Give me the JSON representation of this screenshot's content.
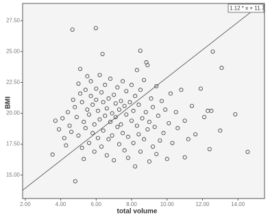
{
  "chart_data": {
    "type": "scatter",
    "x_label": "total volume",
    "y_label": "BMI",
    "xlim": [
      1.85,
      15.5
    ],
    "ylim": [
      13.1,
      28.9
    ],
    "xticks": [
      {
        "value": 2,
        "label": "2.00"
      },
      {
        "value": 4,
        "label": "4.00"
      },
      {
        "value": 6,
        "label": "6.00"
      },
      {
        "value": 8,
        "label": "8.00"
      },
      {
        "value": 10,
        "label": "10.00"
      },
      {
        "value": 12,
        "label": "12.00"
      },
      {
        "value": 14,
        "label": "14.00"
      }
    ],
    "yticks": [
      {
        "value": 15,
        "label": "15.00"
      },
      {
        "value": 17.5,
        "label": "17.50"
      },
      {
        "value": 20,
        "label": "20.00"
      },
      {
        "value": 22.5,
        "label": "22.50"
      },
      {
        "value": 25,
        "label": "25.00"
      },
      {
        "value": 27.5,
        "label": "27.50"
      }
    ],
    "fit": {
      "slope": 1.12,
      "intercept": 11.7,
      "label": "1.12 * x + 11.7"
    },
    "series": [
      {
        "color": "#333333",
        "x": [
          3.54,
          4.66,
          4.82,
          5.98,
          6.36,
          8.49,
          12.58,
          13.08,
          8.83,
          14.55,
          13.85,
          11.0,
          3.7,
          3.9,
          4.1,
          4.2,
          4.3,
          4.4,
          4.5,
          4.6,
          4.7,
          4.8,
          4.9,
          5.0,
          5.0,
          5.1,
          5.1,
          5.2,
          5.2,
          5.3,
          5.3,
          5.4,
          5.4,
          5.5,
          5.5,
          5.6,
          5.6,
          5.7,
          5.7,
          5.8,
          5.8,
          5.9,
          5.9,
          6.0,
          6.0,
          6.1,
          6.1,
          6.2,
          6.2,
          6.3,
          6.3,
          6.4,
          6.4,
          6.5,
          6.5,
          6.6,
          6.6,
          6.7,
          6.7,
          6.8,
          6.8,
          6.9,
          6.9,
          7.0,
          7.0,
          7.1,
          7.1,
          7.2,
          7.2,
          7.3,
          7.3,
          7.4,
          7.4,
          7.5,
          7.5,
          7.6,
          7.6,
          7.7,
          7.7,
          7.8,
          7.8,
          7.9,
          8.0,
          8.0,
          8.1,
          8.1,
          8.2,
          8.2,
          8.3,
          8.3,
          8.4,
          8.4,
          8.5,
          8.5,
          8.6,
          8.7,
          8.7,
          8.8,
          8.9,
          8.9,
          9.0,
          9.0,
          9.1,
          9.2,
          9.2,
          9.3,
          9.4,
          9.4,
          9.5,
          9.6,
          9.7,
          9.8,
          9.9,
          10.0,
          10.1,
          10.2,
          10.3,
          10.5,
          10.6,
          10.8,
          11.0,
          11.2,
          11.4,
          11.6,
          11.9,
          12.1,
          12.3,
          12.5,
          12.4,
          13.0
        ],
        "values": [
          16.66,
          26.78,
          14.5,
          26.9,
          24.8,
          25.07,
          25.0,
          23.68,
          24.13,
          16.88,
          19.92,
          16.44,
          19.4,
          18.7,
          19.6,
          18.0,
          17.4,
          20.1,
          19.0,
          18.5,
          21.1,
          20.5,
          19.7,
          18.2,
          22.4,
          21.6,
          23.6,
          20.9,
          17.2,
          19.3,
          16.3,
          21.9,
          18.8,
          20.3,
          23.0,
          17.6,
          19.9,
          21.4,
          22.6,
          18.4,
          20.7,
          16.9,
          19.1,
          21.1,
          22.0,
          18.0,
          20.2,
          19.5,
          23.1,
          17.3,
          21.7,
          20.9,
          18.6,
          22.3,
          19.8,
          16.6,
          20.4,
          21.2,
          17.9,
          19.3,
          22.8,
          20.0,
          18.2,
          21.5,
          16.2,
          19.7,
          20.8,
          18.9,
          22.1,
          17.5,
          20.3,
          21.0,
          19.1,
          18.4,
          22.6,
          20.6,
          17.0,
          19.9,
          21.8,
          18.1,
          16.4,
          20.9,
          19.4,
          22.3,
          17.6,
          20.2,
          21.4,
          15.7,
          19.0,
          23.5,
          18.3,
          20.7,
          16.9,
          21.9,
          19.6,
          17.9,
          22.7,
          20.1,
          18.7,
          23.9,
          19.3,
          16.1,
          21.2,
          17.3,
          20.5,
          18.9,
          22.2,
          16.7,
          19.8,
          17.8,
          21.0,
          18.4,
          20.3,
          16.3,
          19.2,
          21.6,
          17.6,
          20.1,
          18.8,
          21.9,
          19.4,
          17.9,
          20.6,
          18.3,
          22.0,
          19.7,
          20.2,
          20.2,
          17.1,
          18.6
        ]
      }
    ]
  }
}
